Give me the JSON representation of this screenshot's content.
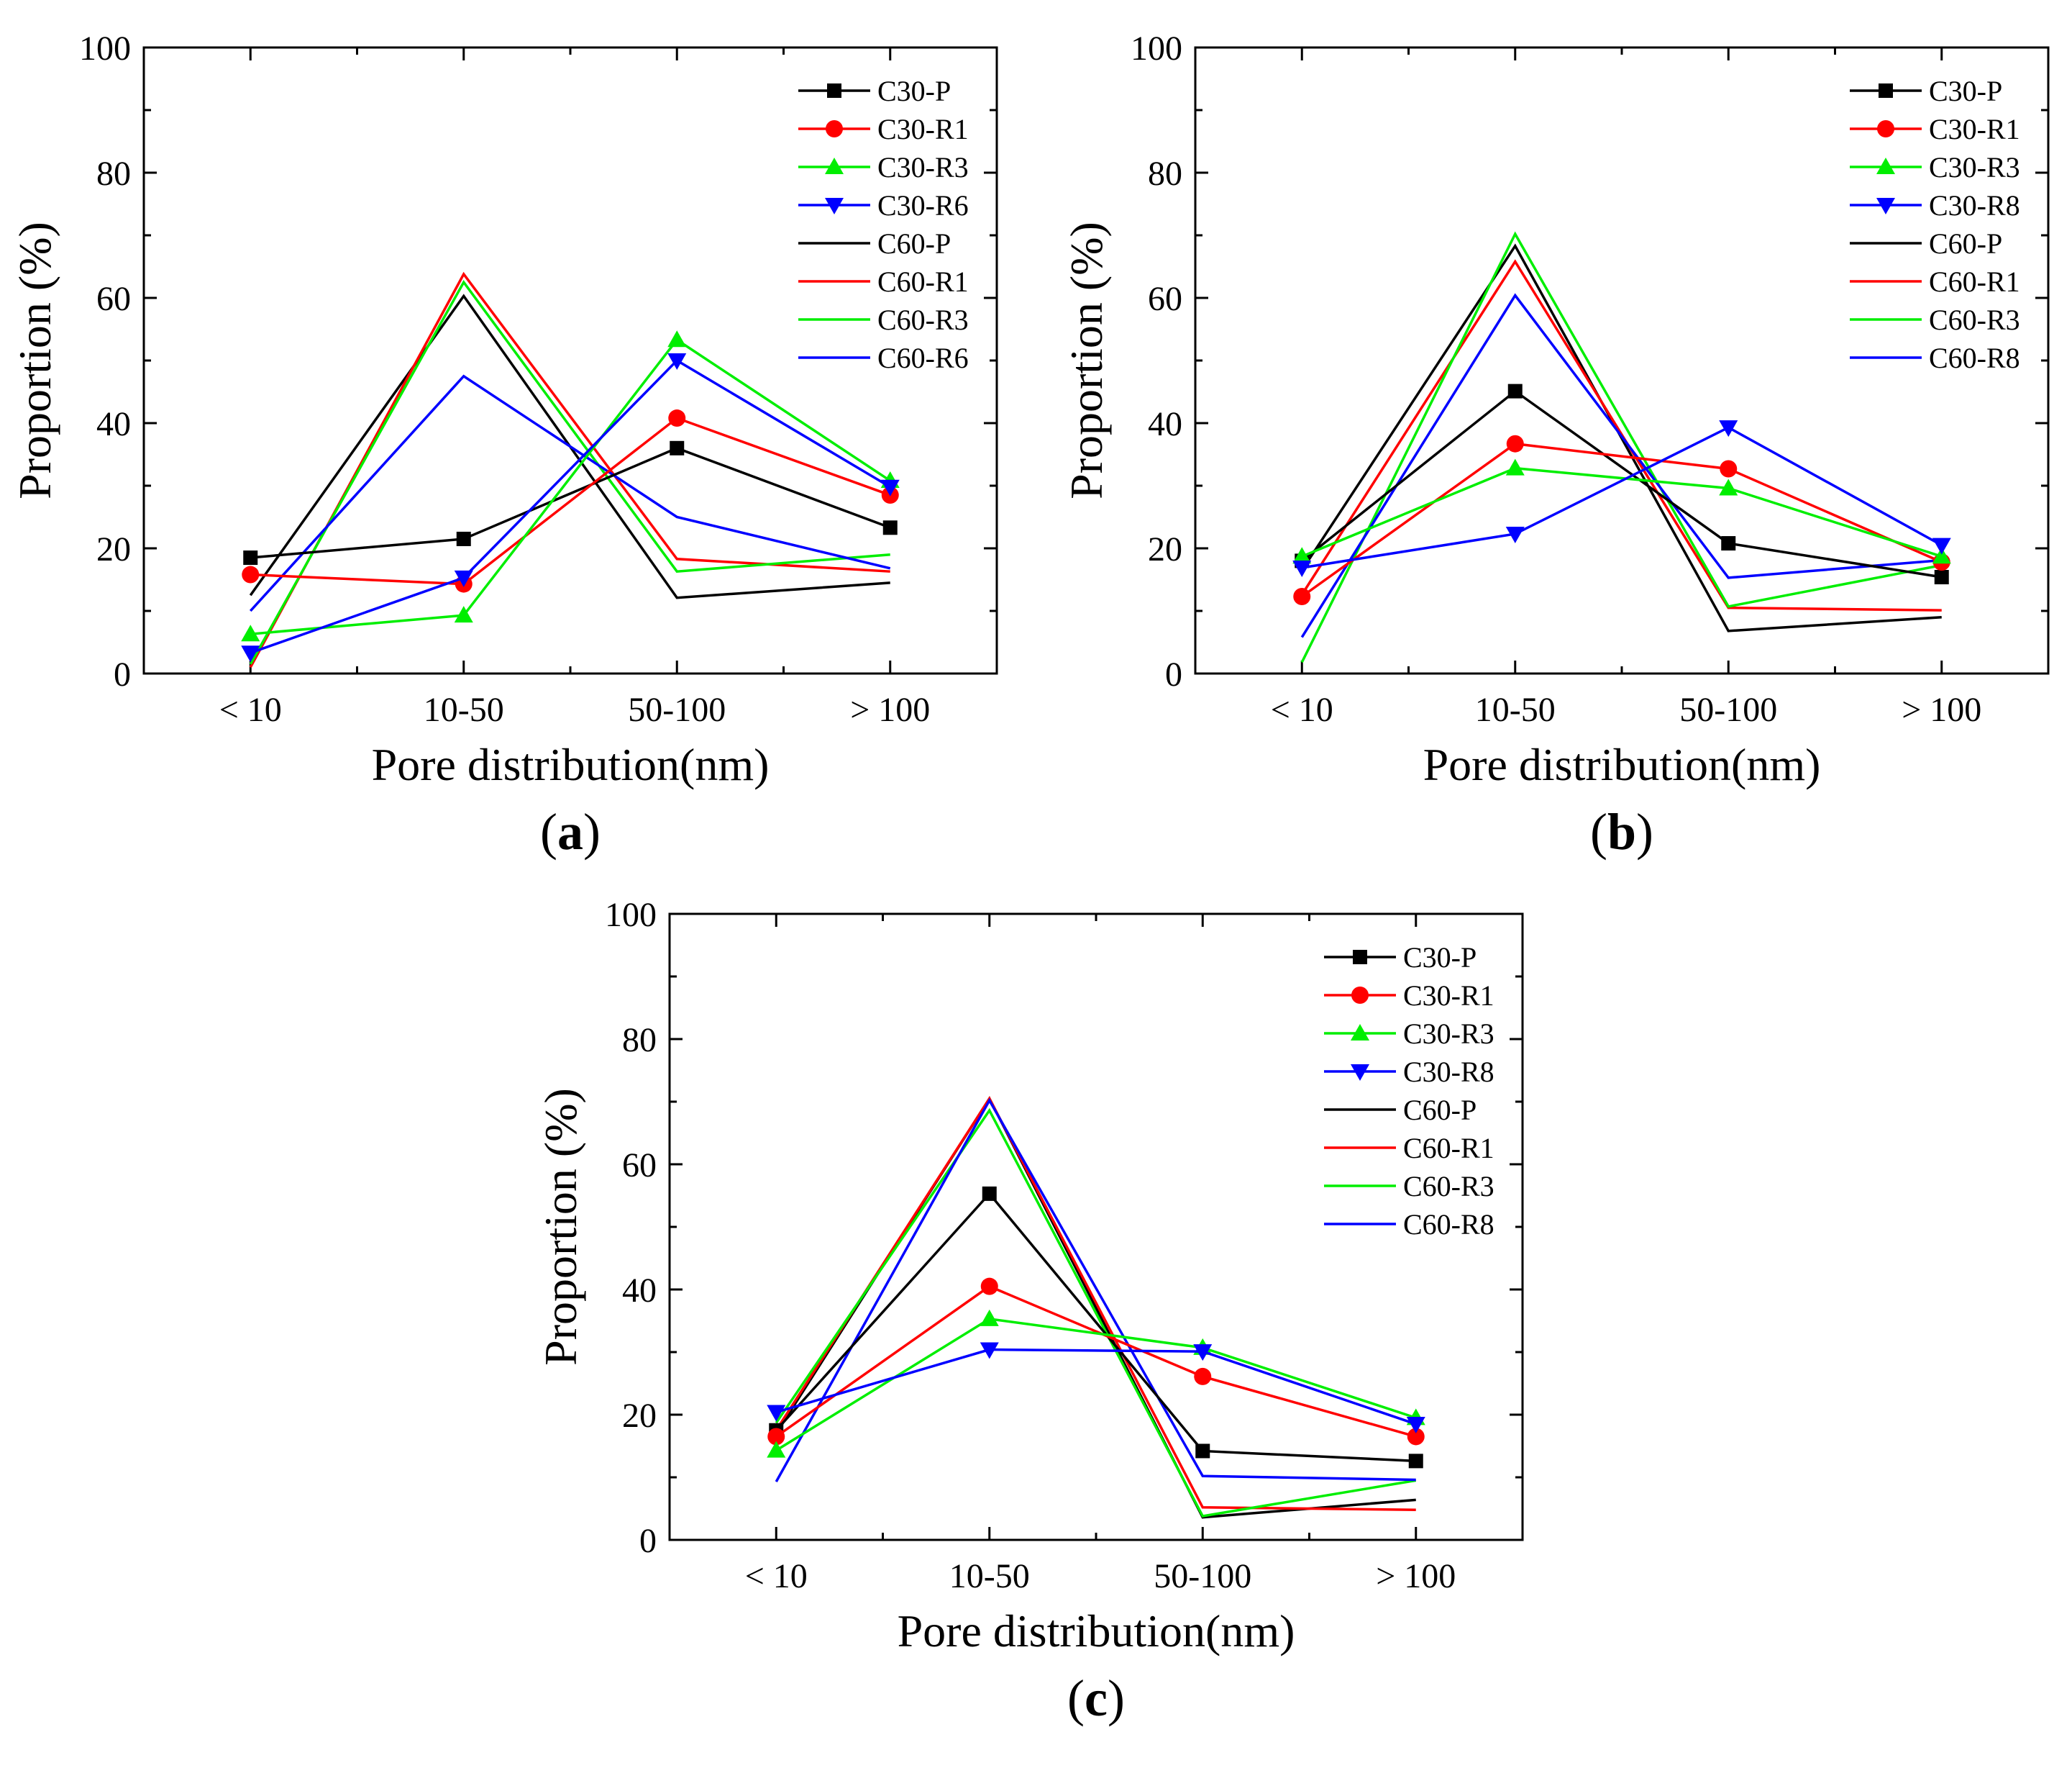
{
  "figure": {
    "panels": [
      "a",
      "b",
      "c"
    ]
  },
  "chart_data": [
    {
      "type": "line",
      "panel_label": "a",
      "categories": [
        "< 10",
        "10-50",
        "50-100",
        "> 100"
      ],
      "xlabel": "Pore distribution(nm)",
      "ylabel": "Proportion (%)",
      "ylim": [
        0,
        100
      ],
      "yticks": [
        0,
        20,
        40,
        60,
        80,
        100
      ],
      "grid": false,
      "legend_position": "top-right",
      "series": [
        {
          "name": "C30-P",
          "color": "#000000",
          "marker": "square",
          "values": [
            18.5,
            21.5,
            36,
            23.3
          ]
        },
        {
          "name": "C30-R1",
          "color": "#ff0000",
          "marker": "circle",
          "values": [
            15.8,
            14.3,
            40.8,
            28.5
          ]
        },
        {
          "name": "C30-R3",
          "color": "#00ee00",
          "marker": "triangle-up",
          "values": [
            6.3,
            9.3,
            53.3,
            30.8
          ]
        },
        {
          "name": "C30-R6",
          "color": "#0000ff",
          "marker": "triangle-down",
          "values": [
            3.3,
            15.3,
            50,
            29.8
          ]
        },
        {
          "name": "C60-P",
          "color": "#000000",
          "marker": "none",
          "values": [
            12.5,
            60.3,
            12.1,
            14.5
          ]
        },
        {
          "name": "C60-R1",
          "color": "#ff0000",
          "marker": "none",
          "values": [
            1.0,
            63.8,
            18.3,
            16.3
          ]
        },
        {
          "name": "C60-R3",
          "color": "#00ee00",
          "marker": "none",
          "values": [
            1.5,
            62.5,
            16.3,
            19
          ]
        },
        {
          "name": "C60-R6",
          "color": "#0000ff",
          "marker": "none",
          "values": [
            10,
            47.5,
            25,
            16.8
          ]
        }
      ]
    },
    {
      "type": "line",
      "panel_label": "b",
      "categories": [
        "< 10",
        "10-50",
        "50-100",
        "> 100"
      ],
      "xlabel": "Pore distribution(nm)",
      "ylabel": "Proportion (%)",
      "ylim": [
        0,
        100
      ],
      "yticks": [
        0,
        20,
        40,
        60,
        80,
        100
      ],
      "grid": false,
      "legend_position": "top-right",
      "series": [
        {
          "name": "C30-P",
          "color": "#000000",
          "marker": "square",
          "values": [
            18,
            45.1,
            20.8,
            15.4
          ]
        },
        {
          "name": "C30-R1",
          "color": "#ff0000",
          "marker": "circle",
          "values": [
            12.3,
            36.7,
            32.7,
            17.8
          ]
        },
        {
          "name": "C30-R3",
          "color": "#00ee00",
          "marker": "triangle-up",
          "values": [
            18.7,
            32.8,
            29.6,
            18.7
          ]
        },
        {
          "name": "C30-R8",
          "color": "#0000ff",
          "marker": "triangle-down",
          "values": [
            16.9,
            22.3,
            39.3,
            20.5
          ]
        },
        {
          "name": "C60-P",
          "color": "#000000",
          "marker": "none",
          "values": [
            16.5,
            68.3,
            6.8,
            9
          ]
        },
        {
          "name": "C60-R1",
          "color": "#ff0000",
          "marker": "none",
          "values": [
            12.6,
            65.8,
            10.5,
            10.1
          ]
        },
        {
          "name": "C60-R3",
          "color": "#00ee00",
          "marker": "none",
          "values": [
            1.8,
            70.2,
            10.7,
            17.3
          ]
        },
        {
          "name": "C60-R8",
          "color": "#0000ff",
          "marker": "none",
          "values": [
            5.8,
            60.4,
            15.3,
            18.1
          ]
        }
      ]
    },
    {
      "type": "line",
      "panel_label": "c",
      "categories": [
        "< 10",
        "10-50",
        "50-100",
        "> 100"
      ],
      "xlabel": "Pore distribution(nm)",
      "ylabel": "Proportion (%)",
      "ylim": [
        0,
        100
      ],
      "yticks": [
        0,
        20,
        40,
        60,
        80,
        100
      ],
      "grid": false,
      "legend_position": "top-right",
      "series": [
        {
          "name": "C30-P",
          "color": "#000000",
          "marker": "square",
          "values": [
            17.5,
            55.3,
            14.2,
            12.6
          ]
        },
        {
          "name": "C30-R1",
          "color": "#ff0000",
          "marker": "circle",
          "values": [
            16.5,
            40.5,
            26.1,
            16.5
          ]
        },
        {
          "name": "C30-R3",
          "color": "#00ee00",
          "marker": "triangle-up",
          "values": [
            14.3,
            35.3,
            30.7,
            19.5
          ]
        },
        {
          "name": "C30-R8",
          "color": "#0000ff",
          "marker": "triangle-down",
          "values": [
            20.4,
            30.4,
            30.1,
            18.5
          ]
        },
        {
          "name": "C60-P",
          "color": "#000000",
          "marker": "none",
          "values": [
            17,
            70.5,
            3.6,
            6.4
          ]
        },
        {
          "name": "C60-R1",
          "color": "#ff0000",
          "marker": "none",
          "values": [
            17.5,
            70.5,
            5.2,
            4.8
          ]
        },
        {
          "name": "C60-R3",
          "color": "#00ee00",
          "marker": "none",
          "values": [
            18.7,
            68.6,
            3.8,
            9.5
          ]
        },
        {
          "name": "C60-R8",
          "color": "#0000ff",
          "marker": "none",
          "values": [
            9.3,
            70.2,
            10.2,
            9.6
          ]
        }
      ]
    }
  ]
}
